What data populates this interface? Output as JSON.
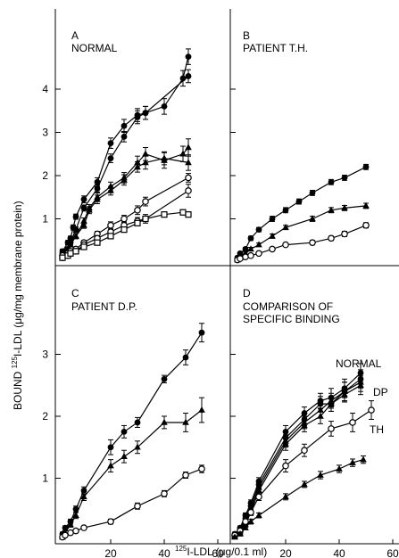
{
  "chart_data": [
    {
      "type": "line",
      "panel_letter": "A",
      "title": "NORMAL",
      "xlim": [
        0,
        60
      ],
      "ylim": [
        0,
        5
      ],
      "series": [
        {
          "marker": "circle-filled",
          "x": [
            2,
            4,
            5,
            6,
            7,
            10,
            15,
            20,
            25,
            30,
            33,
            40,
            47,
            49
          ],
          "y": [
            0.25,
            0.45,
            0.55,
            0.8,
            1.05,
            1.45,
            1.85,
            2.75,
            3.15,
            3.4,
            3.45,
            3.6,
            4.25,
            4.75
          ],
          "err": [
            0.05,
            0.05,
            0.05,
            0.06,
            0.06,
            0.08,
            0.1,
            0.12,
            0.15,
            0.15,
            0.15,
            0.18,
            0.18,
            0.18
          ]
        },
        {
          "marker": "circle-filled",
          "x": [
            2,
            4,
            5,
            7,
            10,
            15,
            20,
            25,
            30,
            33,
            49
          ],
          "y": [
            0.2,
            0.3,
            0.45,
            0.75,
            1.25,
            1.7,
            2.4,
            2.9,
            3.35,
            3.45,
            4.3
          ],
          "err": [
            0.05,
            0.05,
            0.05,
            0.06,
            0.07,
            0.08,
            0.1,
            0.12,
            0.15,
            0.15,
            0.15
          ]
        },
        {
          "marker": "triangle-filled",
          "x": [
            2,
            4,
            5,
            7,
            10,
            12,
            15,
            20,
            25,
            30,
            33,
            40,
            47,
            49
          ],
          "y": [
            0.2,
            0.3,
            0.4,
            0.6,
            0.95,
            1.25,
            1.5,
            1.75,
            1.95,
            2.3,
            2.5,
            2.35,
            2.5,
            2.65
          ],
          "err": [
            0.05,
            0.05,
            0.05,
            0.06,
            0.07,
            0.08,
            0.1,
            0.1,
            0.12,
            0.15,
            0.15,
            0.18,
            0.18,
            0.2
          ]
        },
        {
          "marker": "triangle-filled",
          "x": [
            2,
            4,
            5,
            7,
            10,
            12,
            15,
            20,
            25,
            30,
            33,
            40,
            49
          ],
          "y": [
            0.15,
            0.25,
            0.4,
            0.6,
            0.85,
            1.2,
            1.45,
            1.65,
            1.9,
            2.2,
            2.3,
            2.4,
            2.3
          ],
          "err": [
            0.05,
            0.05,
            0.05,
            0.06,
            0.07,
            0.08,
            0.1,
            0.1,
            0.12,
            0.12,
            0.15,
            0.15,
            0.18
          ]
        },
        {
          "marker": "circle-open",
          "x": [
            2,
            4,
            5,
            7,
            10,
            15,
            20,
            25,
            30,
            33,
            49
          ],
          "y": [
            0.15,
            0.2,
            0.25,
            0.3,
            0.45,
            0.65,
            0.85,
            1.0,
            1.2,
            1.4,
            1.95
          ],
          "err": [
            0.03,
            0.03,
            0.04,
            0.05,
            0.05,
            0.06,
            0.08,
            0.08,
            0.1,
            0.1,
            0.1
          ]
        },
        {
          "marker": "circle-open",
          "x": [
            2,
            4,
            5,
            7,
            10,
            15,
            20,
            25,
            30,
            33,
            49
          ],
          "y": [
            0.1,
            0.15,
            0.2,
            0.25,
            0.4,
            0.55,
            0.7,
            0.85,
            0.95,
            1.0,
            1.65
          ],
          "err": [
            0.03,
            0.03,
            0.04,
            0.05,
            0.05,
            0.06,
            0.06,
            0.08,
            0.08,
            0.1,
            0.15
          ]
        },
        {
          "marker": "square-open",
          "x": [
            2,
            4,
            5,
            7,
            10,
            15,
            20,
            25,
            30,
            33,
            40,
            47,
            49
          ],
          "y": [
            0.1,
            0.15,
            0.2,
            0.25,
            0.35,
            0.45,
            0.6,
            0.75,
            0.9,
            1.0,
            1.1,
            1.15,
            1.1
          ],
          "err": [
            0.03,
            0.03,
            0.03,
            0.04,
            0.04,
            0.05,
            0.05,
            0.06,
            0.06,
            0.06,
            0.06,
            0.06,
            0.06
          ]
        }
      ]
    },
    {
      "type": "line",
      "panel_letter": "B",
      "title": "PATIENT T.H.",
      "xlim": [
        0,
        60
      ],
      "ylim": [
        0,
        5
      ],
      "series": [
        {
          "marker": "circle-filled",
          "x": [
            2,
            3,
            5,
            7,
            10,
            15,
            20,
            25,
            30,
            37,
            42,
            50
          ],
          "y": [
            0.1,
            0.2,
            0.3,
            0.55,
            0.75,
            1.0,
            1.2,
            1.4,
            1.6,
            1.85,
            1.95,
            2.2
          ],
          "err": [
            0.03,
            0.03,
            0.04,
            0.05,
            0.05,
            0.06,
            0.06,
            0.06,
            0.06,
            0.06,
            0.06,
            0.06
          ]
        },
        {
          "marker": "triangle-filled",
          "x": [
            2,
            3,
            5,
            7,
            10,
            15,
            20,
            30,
            37,
            42,
            50
          ],
          "y": [
            0.05,
            0.1,
            0.2,
            0.3,
            0.4,
            0.6,
            0.8,
            1.0,
            1.2,
            1.25,
            1.3
          ],
          "err": [
            0.03,
            0.03,
            0.03,
            0.04,
            0.04,
            0.05,
            0.05,
            0.06,
            0.06,
            0.06,
            0.06
          ]
        },
        {
          "marker": "circle-open",
          "x": [
            2,
            3,
            5,
            7,
            10,
            15,
            20,
            30,
            37,
            42,
            50
          ],
          "y": [
            0.05,
            0.08,
            0.12,
            0.15,
            0.2,
            0.3,
            0.4,
            0.45,
            0.55,
            0.65,
            0.85
          ],
          "err": [
            0.02,
            0.02,
            0.03,
            0.03,
            0.03,
            0.04,
            0.04,
            0.05,
            0.05,
            0.06,
            0.06
          ]
        }
      ]
    },
    {
      "type": "line",
      "panel_letter": "C",
      "title": "PATIENT D.P.",
      "xlim": [
        0,
        60
      ],
      "ylim": [
        0,
        4
      ],
      "series": [
        {
          "marker": "circle-filled",
          "x": [
            2,
            3,
            5,
            7,
            10,
            20,
            25,
            30,
            40,
            48,
            54
          ],
          "y": [
            0.1,
            0.2,
            0.3,
            0.5,
            0.8,
            1.5,
            1.75,
            1.9,
            2.6,
            2.95,
            3.35
          ],
          "err": [
            0.03,
            0.03,
            0.04,
            0.05,
            0.06,
            0.12,
            0.1,
            0.08,
            0.06,
            0.12,
            0.15
          ]
        },
        {
          "marker": "triangle-filled",
          "x": [
            2,
            3,
            5,
            7,
            10,
            20,
            25,
            30,
            40,
            48,
            54
          ],
          "y": [
            0.05,
            0.12,
            0.25,
            0.4,
            0.7,
            1.2,
            1.35,
            1.5,
            1.9,
            1.9,
            2.1
          ],
          "err": [
            0.03,
            0.03,
            0.04,
            0.05,
            0.06,
            0.1,
            0.1,
            0.1,
            0.1,
            0.15,
            0.2
          ]
        },
        {
          "marker": "circle-open",
          "x": [
            2,
            3,
            5,
            7,
            10,
            20,
            30,
            40,
            48,
            54
          ],
          "y": [
            0.05,
            0.08,
            0.12,
            0.15,
            0.2,
            0.3,
            0.55,
            0.75,
            1.05,
            1.15
          ],
          "err": [
            0.02,
            0.02,
            0.03,
            0.03,
            0.03,
            0.04,
            0.05,
            0.05,
            0.05,
            0.06
          ]
        }
      ]
    },
    {
      "type": "line",
      "panel_letter": "D",
      "title": "COMPARISON OF SPECIFIC BINDING",
      "xlim": [
        0,
        60
      ],
      "ylim": [
        0,
        4
      ],
      "series": [
        {
          "name": "NORMAL",
          "marker": "circle-filled",
          "x": [
            1,
            3,
            5,
            7,
            10,
            20,
            27,
            33,
            37,
            42,
            48
          ],
          "y": [
            0.1,
            0.2,
            0.4,
            0.6,
            0.95,
            1.75,
            2.05,
            2.25,
            2.3,
            2.45,
            2.7
          ],
          "err": [
            0.03,
            0.03,
            0.04,
            0.05,
            0.06,
            0.1,
            0.1,
            0.12,
            0.15,
            0.15,
            0.15
          ]
        },
        {
          "name": "NORMAL",
          "marker": "circle-filled",
          "x": [
            1,
            3,
            5,
            7,
            10,
            20,
            27,
            33,
            37,
            42,
            48
          ],
          "y": [
            0.08,
            0.18,
            0.35,
            0.55,
            0.9,
            1.65,
            1.95,
            2.2,
            2.2,
            2.4,
            2.6
          ],
          "err": [
            0.03,
            0.03,
            0.04,
            0.05,
            0.06,
            0.1,
            0.1,
            0.12,
            0.12,
            0.15,
            0.15
          ]
        },
        {
          "name": "NORMAL",
          "marker": "triangle-filled",
          "x": [
            1,
            3,
            5,
            7,
            10,
            20,
            27,
            33,
            37,
            42,
            48
          ],
          "y": [
            0.08,
            0.15,
            0.3,
            0.5,
            0.85,
            1.6,
            1.9,
            2.1,
            2.25,
            2.4,
            2.55
          ],
          "err": [
            0.03,
            0.03,
            0.04,
            0.05,
            0.06,
            0.1,
            0.1,
            0.12,
            0.12,
            0.15,
            0.15
          ]
        },
        {
          "name": "NORMAL",
          "marker": "triangle-filled",
          "x": [
            1,
            3,
            5,
            7,
            10,
            20,
            27,
            33,
            37,
            42,
            48
          ],
          "y": [
            0.06,
            0.12,
            0.25,
            0.45,
            0.8,
            1.55,
            1.85,
            2.0,
            2.2,
            2.35,
            2.5
          ],
          "err": [
            0.03,
            0.03,
            0.04,
            0.05,
            0.06,
            0.1,
            0.1,
            0.12,
            0.12,
            0.12,
            0.15
          ]
        },
        {
          "name": "DP",
          "marker": "circle-open",
          "x": [
            1,
            3,
            5,
            7,
            10,
            20,
            27,
            37,
            45,
            52
          ],
          "y": [
            0.08,
            0.15,
            0.3,
            0.45,
            0.7,
            1.2,
            1.45,
            1.8,
            1.9,
            2.1
          ],
          "err": [
            0.03,
            0.03,
            0.04,
            0.05,
            0.06,
            0.1,
            0.1,
            0.12,
            0.15,
            0.15
          ]
        },
        {
          "name": "TH",
          "marker": "triangle-filled",
          "x": [
            1,
            3,
            5,
            7,
            10,
            20,
            27,
            33,
            40,
            45,
            49
          ],
          "y": [
            0.05,
            0.1,
            0.2,
            0.3,
            0.4,
            0.7,
            0.9,
            1.05,
            1.15,
            1.25,
            1.3
          ],
          "err": [
            0.02,
            0.03,
            0.03,
            0.04,
            0.04,
            0.05,
            0.05,
            0.06,
            0.06,
            0.06,
            0.06
          ]
        }
      ]
    }
  ],
  "axes": {
    "y_title_pre": "BOUND ",
    "y_title_sup": "125",
    "y_title_post": "I-LDL (μg/mg membrane protein)",
    "x_title_sup": "125",
    "x_title_post": "I-LDL (μg/0.1 ml)",
    "x_ticks": [
      20,
      40,
      60
    ],
    "y_ticks_top": [
      1,
      2,
      3,
      4
    ],
    "y_ticks_bottom": [
      1,
      2,
      3
    ]
  }
}
